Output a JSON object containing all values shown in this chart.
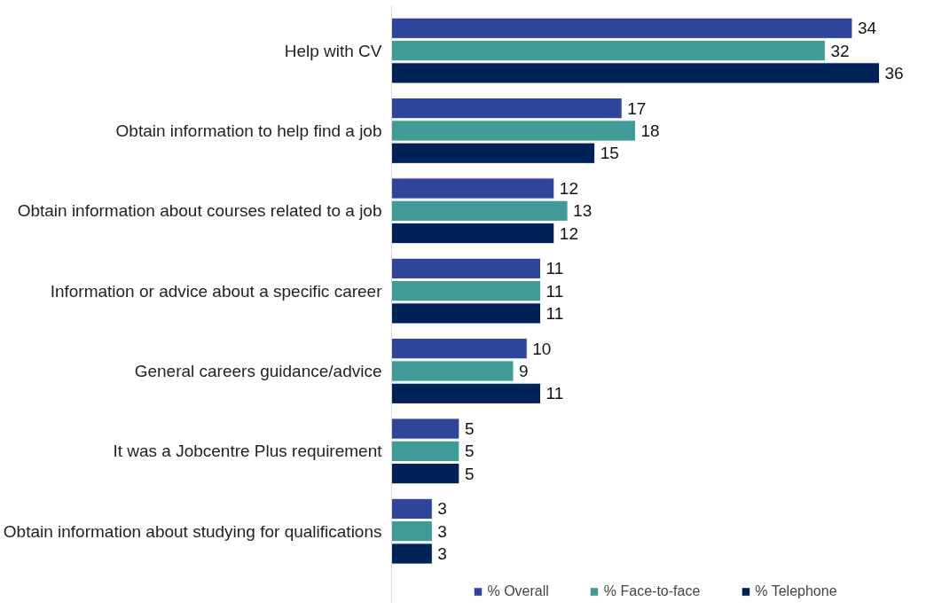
{
  "chart_data": {
    "type": "bar",
    "orientation": "horizontal",
    "data_labels": true,
    "legend": "bottom",
    "grid": false,
    "categories": [
      "Help with CV",
      "Obtain information to help find a job",
      "Obtain information about courses related to a job",
      "Information or advice about a specific career",
      "General careers guidance/advice",
      "It was a Jobcentre Plus requirement",
      "Obtain information about studying for qualifications"
    ],
    "series": [
      {
        "name": "% Overall",
        "color": "#2e459b",
        "values": [
          34,
          17,
          12,
          11,
          10,
          5,
          3
        ]
      },
      {
        "name": "% Face-to-face",
        "color": "#3f9a98",
        "values": [
          32,
          18,
          13,
          11,
          9,
          5,
          3
        ]
      },
      {
        "name": "% Telephone",
        "color": "#002357",
        "values": [
          36,
          15,
          12,
          11,
          11,
          5,
          3
        ]
      }
    ]
  }
}
